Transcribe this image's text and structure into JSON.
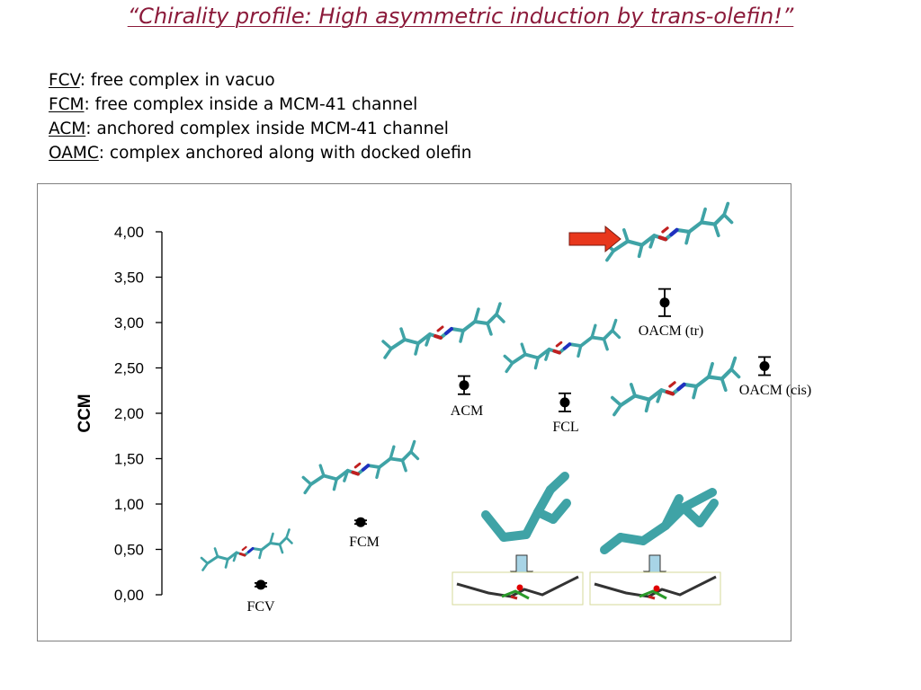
{
  "title": "“Chirality profile: High asymmetric induction by trans-olefin!”",
  "definitions": [
    {
      "abbr": "FCV",
      "text": ": free complex in vacuo"
    },
    {
      "abbr": "FCM",
      "text": ": free complex inside a MCM-41 channel"
    },
    {
      "abbr": "ACM",
      "text": ": anchored complex inside MCM-41 channel"
    },
    {
      "abbr": "OAMC",
      "text": ": complex anchored along with docked olefin"
    }
  ],
  "colors": {
    "title": "#8b1a3a",
    "molecule": "#3fa3a6",
    "arrow": "#e8371c",
    "dock_arrow": "#a8d4e6",
    "red_dot": "#e00000"
  },
  "chart_data": {
    "type": "scatter",
    "ylabel": "CCM",
    "ylim": [
      0,
      4
    ],
    "yticks": [
      "0,00",
      "0,50",
      "1,00",
      "1,50",
      "2,00",
      "2,50",
      "3,00",
      "3,50",
      "4,00"
    ],
    "grid": false,
    "points": [
      {
        "label": "FCV",
        "y": 0.11,
        "err": 0.02
      },
      {
        "label": "FCM",
        "y": 0.8,
        "err": 0.02
      },
      {
        "label": "ACM",
        "y": 2.31,
        "err": 0.1
      },
      {
        "label": "FCL",
        "y": 2.12,
        "err": 0.1
      },
      {
        "label": "OACM (tr)",
        "y": 3.22,
        "err": 0.15
      },
      {
        "label": "OACM (cis)",
        "y": 2.52,
        "err": 0.1
      }
    ]
  }
}
